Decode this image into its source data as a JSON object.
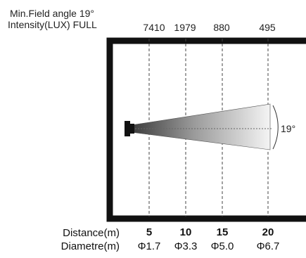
{
  "header": {
    "field_angle": "Min.Field angle 19°",
    "intensity": "Intensity(LUX) FULL"
  },
  "intensity_values": [
    "7410",
    "1979",
    "880",
    "495"
  ],
  "distance_label": "Distance(m)",
  "diameter_label": "Diametre(m)",
  "distances": [
    "5",
    "10",
    "15",
    "20"
  ],
  "diameters": [
    "Φ1.7",
    "Φ3.3",
    "Φ5.0",
    "Φ6.7"
  ],
  "beam_angle_label": "19°",
  "colors": {
    "frame": "#111111",
    "beam_dark": "#3a3a3a",
    "beam_light": "#f4f4f4"
  }
}
